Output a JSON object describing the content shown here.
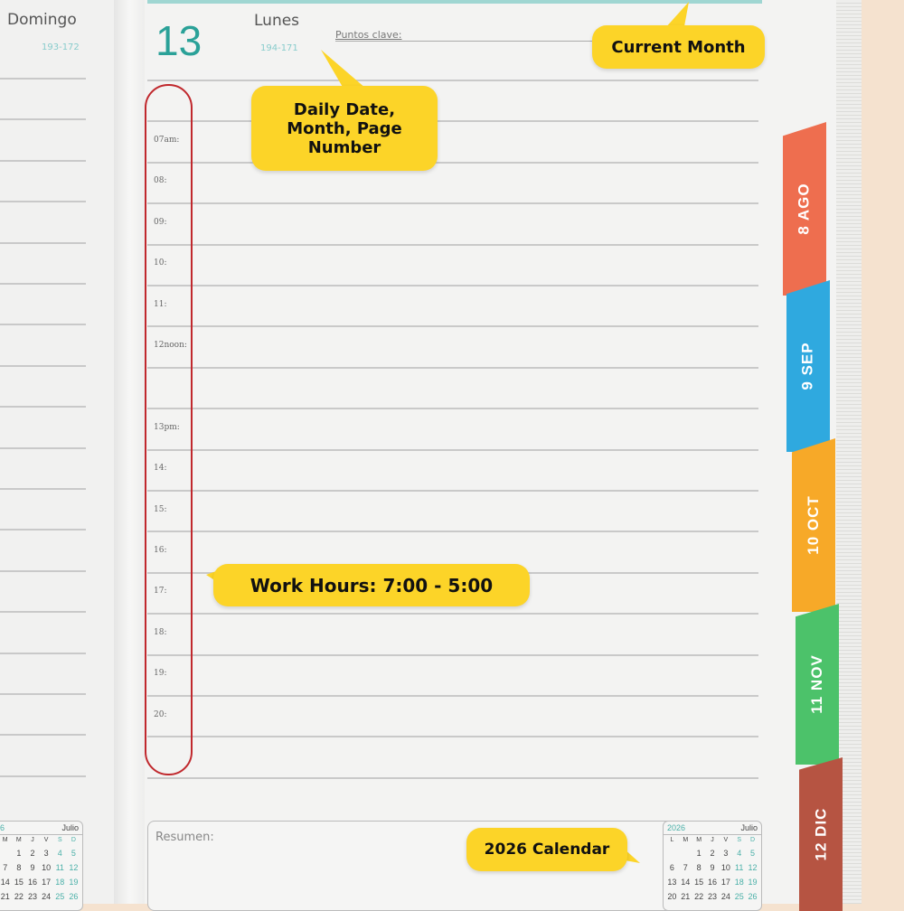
{
  "left_page": {
    "day_name": "Domingo",
    "day_numbers": "193-172"
  },
  "right_page": {
    "date": "13",
    "day_name": "Lunes",
    "day_numbers": "194-171",
    "key_points_label": "Puntos clave:",
    "summary_label": "Resumen:"
  },
  "time_slots": [
    "07am:",
    "08:",
    "09:",
    "10:",
    "11:",
    "12noon:",
    "",
    "13pm:",
    "14:",
    "15:",
    "16:",
    "17:",
    "18:",
    "19:",
    "20:"
  ],
  "month_tabs": [
    {
      "label": "8 AGO",
      "color": "#ee6e4f"
    },
    {
      "label": "9 SEP",
      "color": "#2fa9df"
    },
    {
      "label": "10 OCT",
      "color": "#f7a928"
    },
    {
      "label": "11 NOV",
      "color": "#4cc26a"
    },
    {
      "label": "12 DIC",
      "color": "#b65442"
    }
  ],
  "mini_calendar": {
    "year": "2026",
    "month": "Julio",
    "weekdays": [
      "L",
      "M",
      "M",
      "J",
      "V",
      "S",
      "D"
    ],
    "rows": [
      [
        "",
        "",
        "1",
        "2",
        "3",
        "4",
        "5"
      ],
      [
        "6",
        "7",
        "8",
        "9",
        "10",
        "11",
        "12"
      ],
      [
        "13",
        "14",
        "15",
        "16",
        "17",
        "18",
        "19"
      ],
      [
        "20",
        "21",
        "22",
        "23",
        "24",
        "25",
        "26"
      ]
    ]
  },
  "callouts": {
    "current_month": "Current Month",
    "daily_date": "Daily Date, Month, Page Number",
    "work_hours": "Work Hours: 7:00 - 5:00",
    "calendar": "2026 Calendar"
  },
  "colors": {
    "accent_teal": "#2aa198",
    "callout_yellow": "#fcd428",
    "highlight_red": "#c0282d"
  }
}
